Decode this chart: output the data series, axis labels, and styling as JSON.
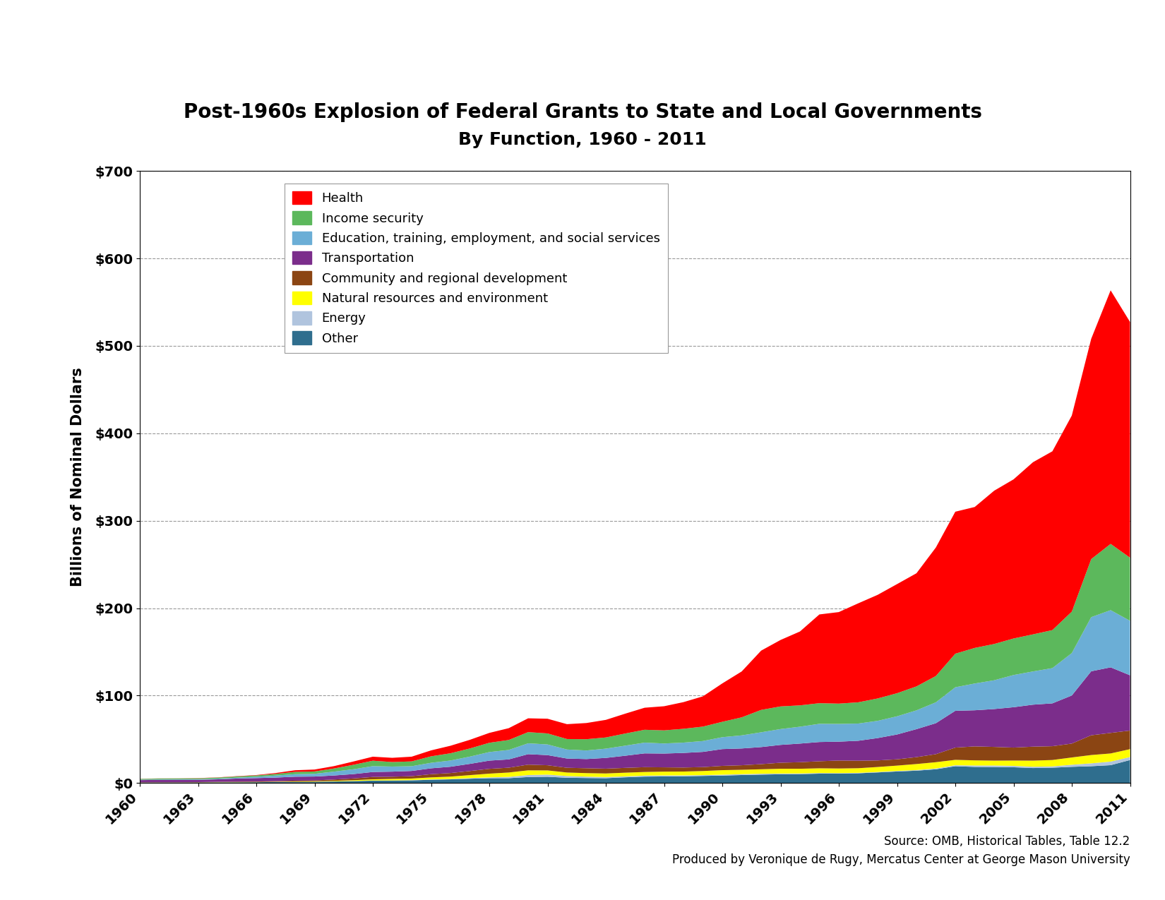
{
  "title_line1": "Post-1960s Explosion of Federal Grants to State and Local Governments",
  "title_line2": "By Function, 1960 - 2011",
  "ylabel": "Billions of Nominal Dollars",
  "source_line1": "Source: OMB, Historical Tables, Table 12.2",
  "source_line2": "Produced by Veronique de Rugy, Mercatus Center at George Mason University",
  "years": [
    1960,
    1961,
    1962,
    1963,
    1964,
    1965,
    1966,
    1967,
    1968,
    1969,
    1970,
    1971,
    1972,
    1973,
    1974,
    1975,
    1976,
    1977,
    1978,
    1979,
    1980,
    1981,
    1982,
    1983,
    1984,
    1985,
    1986,
    1987,
    1988,
    1989,
    1990,
    1991,
    1992,
    1993,
    1994,
    1995,
    1996,
    1997,
    1998,
    1999,
    2000,
    2001,
    2002,
    2003,
    2004,
    2005,
    2006,
    2007,
    2008,
    2009,
    2010,
    2011
  ],
  "series": {
    "Health": [
      0.1,
      0.1,
      0.1,
      0.2,
      0.2,
      0.3,
      0.4,
      1.0,
      1.9,
      2.2,
      2.7,
      3.8,
      4.6,
      4.8,
      5.4,
      6.8,
      8.6,
      9.9,
      11.3,
      13.5,
      15.8,
      16.8,
      17.0,
      18.5,
      20.1,
      22.7,
      25.2,
      27.6,
      30.5,
      34.6,
      43.9,
      52.5,
      67.8,
      76.0,
      84.5,
      101.5,
      104.7,
      113.2,
      118.5,
      124.8,
      129.4,
      147.0,
      162.4,
      161.2,
      175.3,
      182.0,
      196.9,
      204.5,
      224.3,
      252.0,
      290.0,
      269.6
    ],
    "Income security": [
      0.9,
      1.0,
      1.0,
      1.1,
      1.2,
      1.4,
      1.6,
      1.9,
      2.6,
      2.7,
      3.6,
      5.1,
      6.2,
      5.2,
      5.5,
      7.4,
      8.3,
      9.3,
      10.6,
      11.4,
      12.8,
      12.6,
      12.0,
      12.9,
      12.8,
      13.9,
      14.7,
      15.0,
      15.8,
      16.5,
      17.6,
      20.6,
      25.6,
      25.9,
      24.4,
      23.6,
      23.2,
      24.3,
      25.6,
      26.4,
      27.4,
      30.1,
      38.4,
      40.7,
      41.5,
      41.8,
      42.4,
      43.5,
      47.4,
      66.4,
      75.8,
      72.2
    ],
    "Education": [
      0.5,
      0.5,
      0.5,
      0.6,
      0.8,
      1.0,
      1.5,
      2.3,
      2.9,
      3.1,
      4.4,
      5.5,
      6.7,
      5.8,
      5.4,
      6.3,
      7.1,
      8.3,
      9.8,
      10.8,
      12.4,
      12.2,
      10.3,
      9.8,
      10.6,
      11.5,
      12.3,
      11.5,
      11.8,
      12.4,
      13.6,
      15.0,
      16.9,
      18.1,
      19.3,
      20.8,
      20.3,
      19.7,
      19.7,
      20.8,
      21.5,
      23.9,
      26.9,
      30.6,
      32.9,
      36.8,
      38.0,
      40.3,
      48.5,
      61.9,
      65.4,
      62.3
    ],
    "Transportation": [
      2.6,
      2.8,
      2.9,
      2.7,
      2.9,
      3.6,
      3.9,
      4.1,
      4.5,
      4.4,
      4.6,
      5.0,
      5.7,
      5.8,
      6.0,
      6.7,
      7.2,
      8.2,
      9.4,
      9.5,
      12.0,
      11.6,
      10.6,
      10.5,
      12.3,
      13.9,
      15.8,
      15.8,
      16.7,
      17.4,
      19.2,
      19.2,
      19.5,
      20.4,
      21.3,
      22.0,
      21.6,
      22.8,
      25.6,
      28.4,
      32.0,
      35.4,
      42.1,
      41.3,
      43.3,
      46.2,
      48.0,
      49.0,
      55.0,
      73.2,
      75.0,
      63.2
    ],
    "Community": [
      0.2,
      0.2,
      0.2,
      0.3,
      0.4,
      0.5,
      0.5,
      0.7,
      1.0,
      1.1,
      1.5,
      2.0,
      2.7,
      2.5,
      2.7,
      3.7,
      4.1,
      4.7,
      5.5,
      5.5,
      6.5,
      5.9,
      5.4,
      5.6,
      5.5,
      5.5,
      5.5,
      4.9,
      4.6,
      4.5,
      4.9,
      5.2,
      5.9,
      6.9,
      7.5,
      8.1,
      9.1,
      8.6,
      7.5,
      7.2,
      7.9,
      9.2,
      14.0,
      16.0,
      15.7,
      14.8,
      16.0,
      15.8,
      15.9,
      22.6,
      23.5,
      21.3
    ],
    "Natural resources": [
      0.1,
      0.1,
      0.1,
      0.1,
      0.2,
      0.2,
      0.3,
      0.3,
      0.4,
      0.5,
      0.7,
      0.9,
      1.3,
      1.7,
      1.8,
      2.3,
      2.7,
      3.4,
      4.3,
      5.0,
      5.4,
      4.8,
      4.0,
      4.0,
      4.1,
      4.2,
      4.2,
      4.4,
      4.4,
      4.7,
      5.2,
      5.0,
      5.1,
      5.5,
      5.4,
      5.4,
      5.3,
      5.3,
      5.7,
      6.1,
      6.9,
      7.2,
      6.2,
      5.9,
      5.6,
      6.1,
      7.0,
      7.3,
      8.3,
      9.5,
      9.3,
      9.0
    ],
    "Energy": [
      0.0,
      0.0,
      0.0,
      0.0,
      0.0,
      0.0,
      0.0,
      0.0,
      0.0,
      0.0,
      0.1,
      0.1,
      0.2,
      0.2,
      0.3,
      0.4,
      0.4,
      0.7,
      0.9,
      1.5,
      2.3,
      2.5,
      2.0,
      1.6,
      1.3,
      1.1,
      1.1,
      1.1,
      1.0,
      0.9,
      1.0,
      1.0,
      1.0,
      0.8,
      0.7,
      0.7,
      0.6,
      0.5,
      0.5,
      0.6,
      0.7,
      0.9,
      1.1,
      1.6,
      1.7,
      1.6,
      1.5,
      1.5,
      2.4,
      3.3,
      4.1,
      3.4
    ],
    "Other": [
      0.4,
      0.5,
      0.5,
      0.6,
      0.7,
      0.8,
      0.9,
      1.1,
      1.3,
      1.4,
      1.7,
      2.2,
      2.7,
      2.8,
      3.0,
      3.7,
      4.2,
      4.9,
      5.5,
      5.5,
      6.8,
      7.1,
      6.0,
      5.7,
      5.5,
      6.5,
      7.3,
      7.5,
      7.7,
      8.1,
      8.5,
      9.1,
      9.6,
      10.0,
      10.2,
      10.7,
      10.7,
      11.1,
      12.1,
      13.2,
      14.1,
      15.7,
      19.2,
      18.4,
      18.3,
      18.0,
      17.1,
      17.5,
      18.5,
      19.2,
      20.4,
      26.3
    ]
  },
  "series_order_bottom_to_top": [
    "Other",
    "Energy",
    "Natural resources",
    "Community",
    "Transportation",
    "Education",
    "Income security",
    "Health"
  ],
  "legend_order": [
    "Health",
    "Income security",
    "Education",
    "Transportation",
    "Community",
    "Natural resources",
    "Energy",
    "Other"
  ],
  "legend_labels": {
    "Health": "Health",
    "Income security": "Income security",
    "Education": "Education, training, employment, and social services",
    "Transportation": "Transportation",
    "Community": "Community and regional development",
    "Natural resources": "Natural resources and environment",
    "Energy": "Energy",
    "Other": "Other"
  },
  "colors": {
    "Health": "#FF0000",
    "Income security": "#5CB85C",
    "Education": "#6BAED6",
    "Transportation": "#7B2D8B",
    "Community": "#8B4513",
    "Natural resources": "#FFFF00",
    "Energy": "#B0C4DE",
    "Other": "#2F6E8E"
  },
  "ylim": [
    0,
    700
  ],
  "yticks": [
    0,
    100,
    200,
    300,
    400,
    500,
    600,
    700
  ],
  "ytick_labels": [
    "$0",
    "$100",
    "$200",
    "$300",
    "$400",
    "$500",
    "$600",
    "$700"
  ],
  "background_color": "#FFFFFF"
}
